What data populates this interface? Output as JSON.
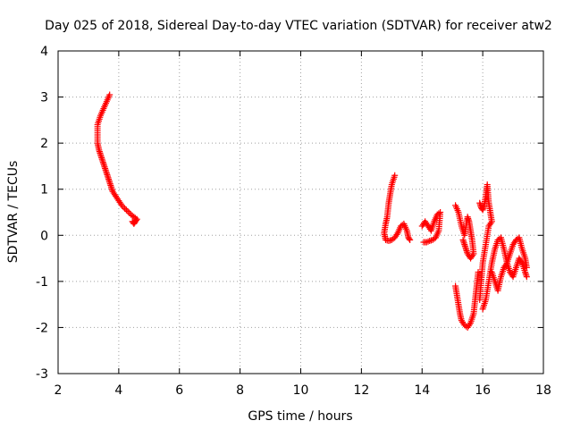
{
  "chart_data": {
    "type": "scatter",
    "title": "Day 025 of 2018, Sidereal Day-to-day VTEC variation (SDTVAR) for receiver atw2",
    "xlabel": "GPS time / hours",
    "ylabel": "SDTVAR / TECUs",
    "xlim": [
      2,
      18
    ],
    "ylim": [
      -3,
      4
    ],
    "xticks": [
      "2",
      "4",
      "6",
      "8",
      "10",
      "12",
      "14",
      "16",
      "18"
    ],
    "yticks": [
      "-3",
      "-2",
      "-1",
      "0",
      "1",
      "2",
      "3",
      "4"
    ],
    "grid": true,
    "marker": "plus",
    "color": "#ff0000",
    "segments": [
      {
        "x": [
          3.7,
          3.6,
          3.5,
          3.4,
          3.3,
          3.3,
          3.35,
          3.4,
          3.45,
          3.5,
          3.55,
          3.6,
          3.65,
          3.7,
          3.75,
          3.8,
          3.9,
          4.0,
          4.1,
          4.2,
          4.3,
          4.4,
          4.5,
          4.6,
          4.55,
          4.5,
          4.45
        ],
        "y": [
          3.05,
          2.9,
          2.75,
          2.6,
          2.4,
          2.0,
          1.85,
          1.75,
          1.65,
          1.55,
          1.45,
          1.35,
          1.25,
          1.15,
          1.05,
          0.95,
          0.85,
          0.75,
          0.65,
          0.58,
          0.52,
          0.45,
          0.4,
          0.35,
          0.3,
          0.25,
          0.3
        ]
      },
      {
        "x": [
          13.1,
          13.0,
          12.95,
          12.9,
          12.85,
          12.8,
          12.75,
          12.8,
          12.9,
          13.0,
          13.1,
          13.2,
          13.3,
          13.4,
          13.5,
          13.55,
          13.6
        ],
        "y": [
          1.3,
          1.1,
          0.9,
          0.7,
          0.4,
          0.25,
          0.05,
          -0.1,
          -0.12,
          -0.1,
          -0.05,
          0.05,
          0.2,
          0.25,
          0.1,
          -0.05,
          -0.1
        ]
      },
      {
        "x": [
          14.0,
          14.1,
          14.2,
          14.3,
          14.4,
          14.5,
          14.6,
          14.55,
          14.45,
          14.35,
          14.25,
          14.15,
          14.05
        ],
        "y": [
          0.2,
          0.3,
          0.2,
          0.1,
          0.3,
          0.45,
          0.5,
          0.1,
          -0.05,
          -0.1,
          -0.12,
          -0.15,
          -0.15
        ]
      },
      {
        "x": [
          15.1,
          15.2,
          15.3,
          15.4,
          15.5,
          15.55,
          15.6,
          15.65,
          15.7,
          15.6,
          15.5,
          15.45,
          15.4,
          15.35
        ],
        "y": [
          0.65,
          0.5,
          0.2,
          0.0,
          0.4,
          0.3,
          0.1,
          -0.1,
          -0.4,
          -0.5,
          -0.4,
          -0.3,
          -0.2,
          -0.1
        ]
      },
      {
        "x": [
          15.1,
          15.15,
          15.2,
          15.25,
          15.3,
          15.4,
          15.5,
          15.6,
          15.7,
          15.75,
          15.8,
          15.85
        ],
        "y": [
          -1.1,
          -1.3,
          -1.5,
          -1.7,
          -1.85,
          -1.95,
          -2.0,
          -1.9,
          -1.7,
          -1.4,
          -1.1,
          -0.8
        ]
      },
      {
        "x": [
          15.9,
          15.95,
          16.0,
          16.05,
          16.1,
          16.15,
          16.2,
          16.25,
          16.3,
          16.2,
          16.1,
          16.0,
          15.95,
          15.9
        ],
        "y": [
          0.7,
          0.6,
          0.55,
          0.65,
          0.85,
          1.1,
          0.7,
          0.5,
          0.3,
          0.2,
          -0.2,
          -0.6,
          -1.0,
          -1.4
        ]
      },
      {
        "x": [
          16.0,
          16.1,
          16.2,
          16.3,
          16.4,
          16.5,
          16.6,
          16.7,
          16.8,
          16.9,
          17.0,
          17.1,
          17.2,
          17.3,
          17.4,
          17.45
        ],
        "y": [
          -1.6,
          -1.4,
          -1.0,
          -0.6,
          -0.3,
          -0.1,
          -0.05,
          -0.3,
          -0.6,
          -0.4,
          -0.2,
          -0.1,
          -0.05,
          -0.3,
          -0.5,
          -0.7
        ]
      },
      {
        "x": [
          16.3,
          16.4,
          16.5,
          16.6,
          16.7,
          16.8,
          16.9,
          17.0,
          17.1,
          17.2,
          17.3,
          17.4,
          17.45
        ],
        "y": [
          -0.8,
          -1.0,
          -1.2,
          -0.9,
          -0.7,
          -0.6,
          -0.8,
          -0.9,
          -0.7,
          -0.5,
          -0.6,
          -0.8,
          -0.9
        ]
      }
    ]
  }
}
